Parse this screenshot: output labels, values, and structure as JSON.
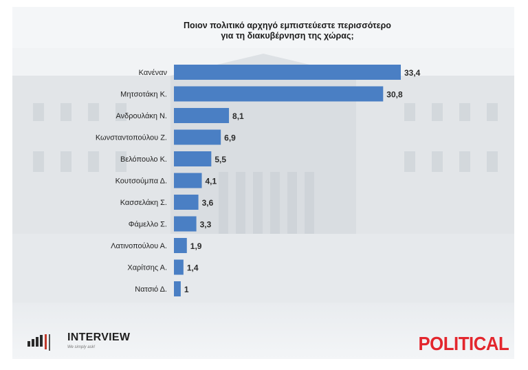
{
  "title_lines": [
    "Ποιον πολιτικό αρχηγό εμπιστεύεστε περισσότερο",
    "για τη διακυβέρνηση της χώρας;"
  ],
  "colors": {
    "bar": "#4a7fc4",
    "accent_red": "#e3262d"
  },
  "chart_data": {
    "type": "bar",
    "orientation": "horizontal",
    "title": "Ποιον πολιτικό αρχηγό εμπιστεύεστε περισσότερο για τη διακυβέρνηση της χώρας;",
    "categories": [
      "Κανέναν",
      "Μητσοτάκη Κ.",
      "Ανδρουλάκη Ν.",
      "Κωνσταντοπούλου Ζ.",
      "Βελόπουλο Κ.",
      "Κουτσούμπα Δ.",
      "Κασσελάκη Σ.",
      "Φάμελλο Σ.",
      "Λατινοπούλου Α.",
      "Χαρίτσης Α.",
      "Νατσιό Δ."
    ],
    "values": [
      33.4,
      30.8,
      8.1,
      6.9,
      5.5,
      4.1,
      3.6,
      3.3,
      1.9,
      1.4,
      1
    ],
    "value_labels": [
      "33,4",
      "30,8",
      "8,1",
      "6,9",
      "5,5",
      "4,1",
      "3,6",
      "3,3",
      "1,9",
      "1,4",
      "1"
    ],
    "xlim": [
      0,
      33.4
    ],
    "grid": false,
    "legend": "none"
  },
  "logos": {
    "left_name": "INTERVIEW",
    "left_tagline": "We simply ask!",
    "right_name": "POLITICAL"
  }
}
